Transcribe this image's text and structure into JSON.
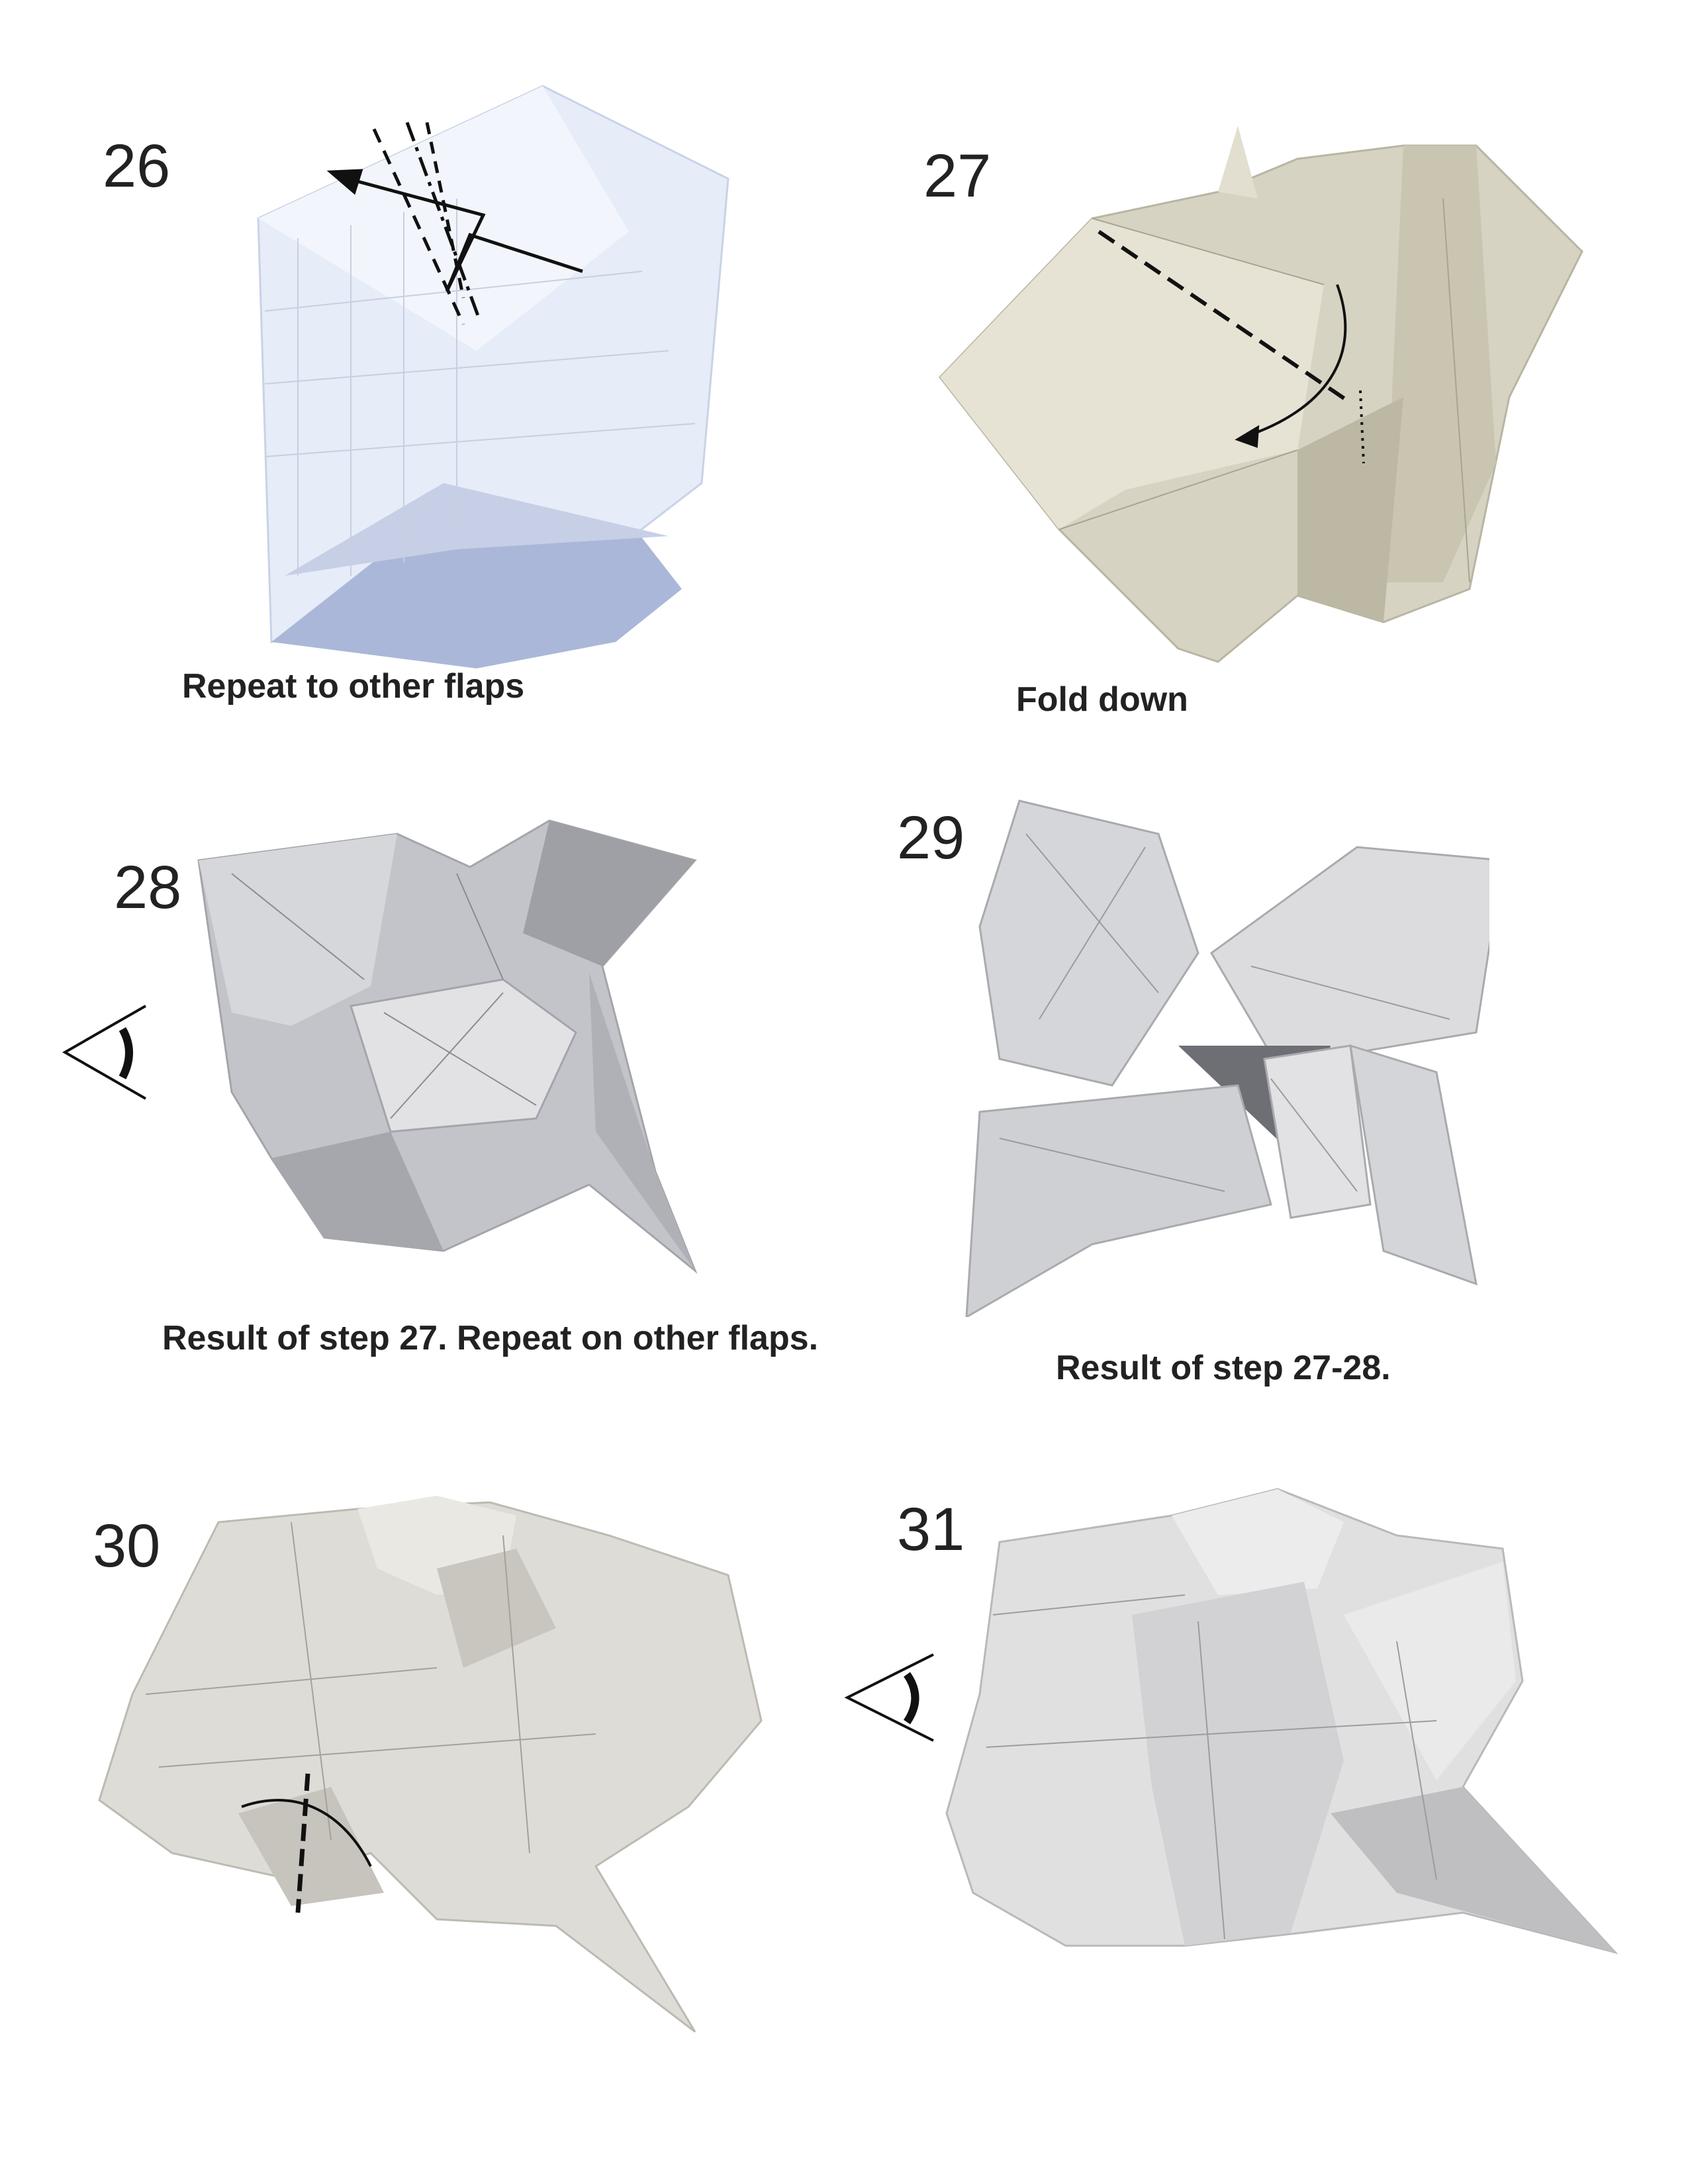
{
  "steps": [
    {
      "number": "26",
      "caption": "Repeat to other flaps"
    },
    {
      "number": "27",
      "caption": "Fold down"
    },
    {
      "number": "28",
      "caption": "Result of step 27.  Repeat on other flaps."
    },
    {
      "number": "29",
      "caption": "Result of step 27-28."
    },
    {
      "number": "30",
      "caption": ""
    },
    {
      "number": "31",
      "caption": ""
    }
  ],
  "colors": {
    "paper_blue": "#dde6f6",
    "paper_cream": "#d9d6c8",
    "paper_gray": "#bfc0c4",
    "paper_white": "#e4e4e4",
    "line": "#111111"
  },
  "icons": [
    "eye-view-icon"
  ]
}
